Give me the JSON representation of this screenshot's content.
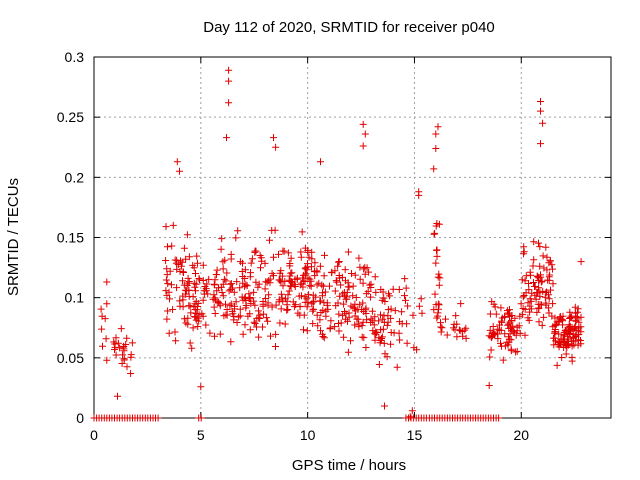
{
  "chart_data": {
    "type": "scatter",
    "title": "Day 112 of 2020, SRMTID for receiver p040",
    "xlabel": "GPS time / hours",
    "ylabel": "SRMTID / TECUs",
    "xlim": [
      0,
      24.2
    ],
    "ylim": [
      0,
      0.3
    ],
    "xticks": [
      0,
      5,
      10,
      15,
      20
    ],
    "xtick_labels": [
      "0",
      "5",
      "10",
      "15",
      "20"
    ],
    "yticks": [
      0,
      0.05,
      0.1,
      0.15,
      0.2,
      0.25,
      0.3
    ],
    "ytick_labels": [
      "0",
      "0.05",
      "0.1",
      "0.15",
      "0.2",
      "0.25",
      "0.3"
    ],
    "grid": true,
    "marker": "plus",
    "color": "#e00000",
    "series": [
      {
        "name": "SRMTID",
        "density_profile": [
          {
            "x_range": [
              0.3,
              0.7
            ],
            "center": 0.085,
            "spread": 0.02,
            "count": 6
          },
          {
            "x_range": [
              0.9,
              1.8
            ],
            "center": 0.055,
            "spread": 0.02,
            "count": 24
          },
          {
            "x_range": [
              3.3,
              4.5
            ],
            "center": 0.11,
            "spread": 0.045,
            "count": 60
          },
          {
            "x_range": [
              4.5,
              6.0
            ],
            "center": 0.1,
            "spread": 0.04,
            "count": 70
          },
          {
            "x_range": [
              6.0,
              8.5
            ],
            "center": 0.105,
            "spread": 0.04,
            "count": 120
          },
          {
            "x_range": [
              8.5,
              10.5
            ],
            "center": 0.11,
            "spread": 0.035,
            "count": 110
          },
          {
            "x_range": [
              10.5,
              13.0
            ],
            "center": 0.1,
            "spread": 0.04,
            "count": 120
          },
          {
            "x_range": [
              13.0,
              14.7
            ],
            "center": 0.085,
            "spread": 0.035,
            "count": 60
          },
          {
            "x_range": [
              14.7,
              15.4
            ],
            "center": 0.08,
            "spread": 0.03,
            "count": 6
          },
          {
            "x_range": [
              15.9,
              16.2
            ],
            "center": 0.12,
            "spread": 0.06,
            "count": 22
          },
          {
            "x_range": [
              16.2,
              17.5
            ],
            "center": 0.075,
            "spread": 0.015,
            "count": 20
          },
          {
            "x_range": [
              18.5,
              20.0
            ],
            "center": 0.075,
            "spread": 0.025,
            "count": 70
          },
          {
            "x_range": [
              20.0,
              21.5
            ],
            "center": 0.11,
            "spread": 0.035,
            "count": 90
          },
          {
            "x_range": [
              21.5,
              22.8
            ],
            "center": 0.07,
            "spread": 0.02,
            "count": 110
          }
        ],
        "peaks": [
          {
            "x": 6.3,
            "y": 0.289
          },
          {
            "x": 6.3,
            "y": 0.28
          },
          {
            "x": 6.3,
            "y": 0.262
          },
          {
            "x": 6.2,
            "y": 0.233
          },
          {
            "x": 8.4,
            "y": 0.233
          },
          {
            "x": 8.5,
            "y": 0.225
          },
          {
            "x": 12.6,
            "y": 0.244
          },
          {
            "x": 12.7,
            "y": 0.236
          },
          {
            "x": 12.6,
            "y": 0.226
          },
          {
            "x": 10.6,
            "y": 0.213
          },
          {
            "x": 3.9,
            "y": 0.213
          },
          {
            "x": 4.0,
            "y": 0.205
          },
          {
            "x": 16.1,
            "y": 0.242
          },
          {
            "x": 16.0,
            "y": 0.236
          },
          {
            "x": 16.0,
            "y": 0.224
          },
          {
            "x": 15.9,
            "y": 0.207
          },
          {
            "x": 20.9,
            "y": 0.263
          },
          {
            "x": 20.9,
            "y": 0.255
          },
          {
            "x": 21.0,
            "y": 0.245
          },
          {
            "x": 20.9,
            "y": 0.228
          },
          {
            "x": 15.2,
            "y": 0.188
          },
          {
            "x": 15.2,
            "y": 0.185
          },
          {
            "x": 0.6,
            "y": 0.113
          },
          {
            "x": 0.6,
            "y": 0.095
          },
          {
            "x": 14.9,
            "y": 0.006
          },
          {
            "x": 14.8,
            "y": 0.001
          },
          {
            "x": 13.6,
            "y": 0.01
          },
          {
            "x": 18.5,
            "y": 0.027
          },
          {
            "x": 5.0,
            "y": 0.026
          },
          {
            "x": 1.1,
            "y": 0.018
          },
          {
            "x": 0.6,
            "y": 0.048
          },
          {
            "x": 22.8,
            "y": 0.13
          }
        ],
        "zero_value_runs": [
          {
            "x_range": [
              0.0,
              3.1
            ],
            "y": 0
          },
          {
            "x_range": [
              4.9,
              5.1
            ],
            "y": 0
          },
          {
            "x_range": [
              14.6,
              15.6
            ],
            "y": 0
          },
          {
            "x_range": [
              15.7,
              19.0
            ],
            "y": 0
          }
        ]
      }
    ]
  }
}
